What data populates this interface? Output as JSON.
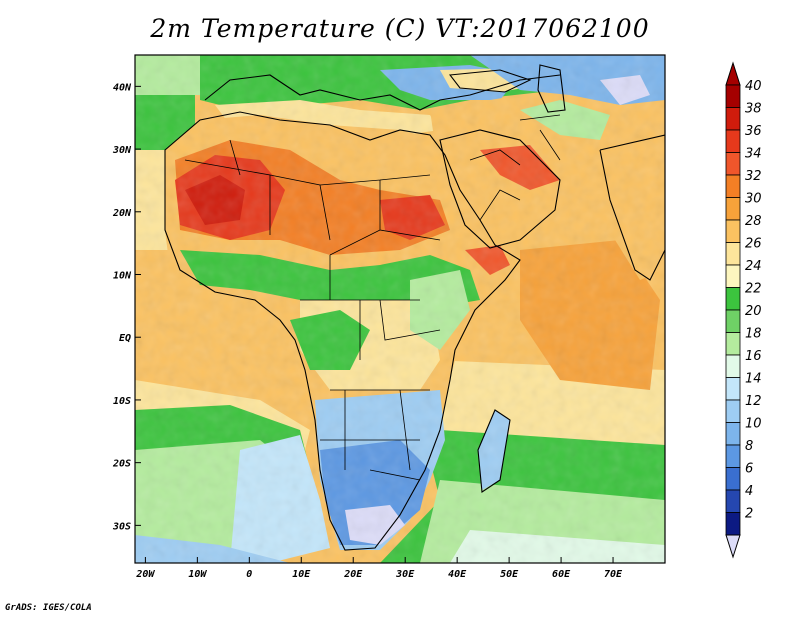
{
  "title": "2m Temperature (C) VT:2017062100",
  "credit": "GrADS: IGES/COLA",
  "map": {
    "lon_range": [
      -22,
      80
    ],
    "lat_range": [
      -36,
      45
    ],
    "lon_ticks": [
      {
        "value": -20,
        "label": "20W"
      },
      {
        "value": -10,
        "label": "10W"
      },
      {
        "value": 0,
        "label": "0"
      },
      {
        "value": 10,
        "label": "10E"
      },
      {
        "value": 20,
        "label": "20E"
      },
      {
        "value": 30,
        "label": "30E"
      },
      {
        "value": 40,
        "label": "40E"
      },
      {
        "value": 50,
        "label": "50E"
      },
      {
        "value": 60,
        "label": "60E"
      },
      {
        "value": 70,
        "label": "70E"
      }
    ],
    "lat_ticks": [
      {
        "value": 40,
        "label": "40N"
      },
      {
        "value": 30,
        "label": "30N"
      },
      {
        "value": 20,
        "label": "20N"
      },
      {
        "value": 10,
        "label": "10N"
      },
      {
        "value": 0,
        "label": "EQ"
      },
      {
        "value": -10,
        "label": "10S"
      },
      {
        "value": -20,
        "label": "20S"
      },
      {
        "value": -30,
        "label": "30S"
      }
    ]
  },
  "colorbar": {
    "labels": [
      "40",
      "38",
      "36",
      "34",
      "32",
      "30",
      "28",
      "26",
      "24",
      "22",
      "20",
      "18",
      "16",
      "14",
      "12",
      "10",
      "8",
      "6",
      "4",
      "2"
    ],
    "colors": [
      "#a50000",
      "#d01c0c",
      "#e6391c",
      "#f0562b",
      "#f37f25",
      "#f7a23a",
      "#fbc261",
      "#fde59b",
      "#fdf6bf",
      "#3cc43e",
      "#6fd166",
      "#b4ec9e",
      "#e2fae8",
      "#c3e6fa",
      "#9ecdf3",
      "#7db5ec",
      "#5c98e3",
      "#3a6fd0",
      "#2547b0",
      "#0c1a83"
    ],
    "top_arrow_color": "#a50000",
    "bottom_arrow_color": "#dcdcf8"
  }
}
